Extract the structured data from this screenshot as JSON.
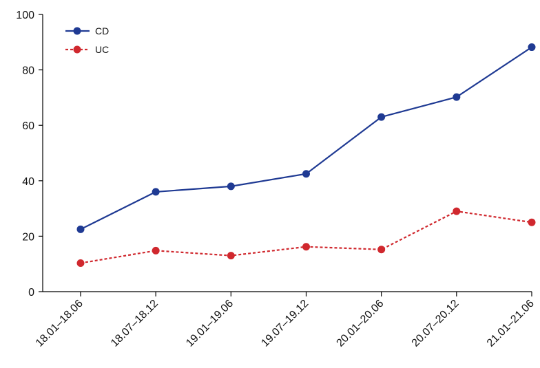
{
  "chart_data": {
    "type": "line",
    "title": "",
    "xlabel": "",
    "ylabel": "",
    "categories": [
      "18.01–18.06",
      "18.07–18.12",
      "19.01–19.06",
      "19.07–19.12",
      "20.01–20.06",
      "20.07–20.12",
      "21.01–21.06"
    ],
    "ylim": [
      0,
      100
    ],
    "yticks": [
      0,
      20,
      40,
      60,
      80,
      100
    ],
    "grid": false,
    "legend_position": "top-left",
    "series": [
      {
        "name": "CD",
        "color": "#1f3a93",
        "line_style": "solid",
        "marker": "circle",
        "values": [
          22.5,
          36,
          38,
          42.5,
          63,
          70.2,
          88.2
        ]
      },
      {
        "name": "UC",
        "color": "#d0282e",
        "line_style": "dashed",
        "marker": "circle",
        "values": [
          10.3,
          14.8,
          13,
          16.2,
          15.2,
          29,
          25
        ]
      }
    ]
  }
}
